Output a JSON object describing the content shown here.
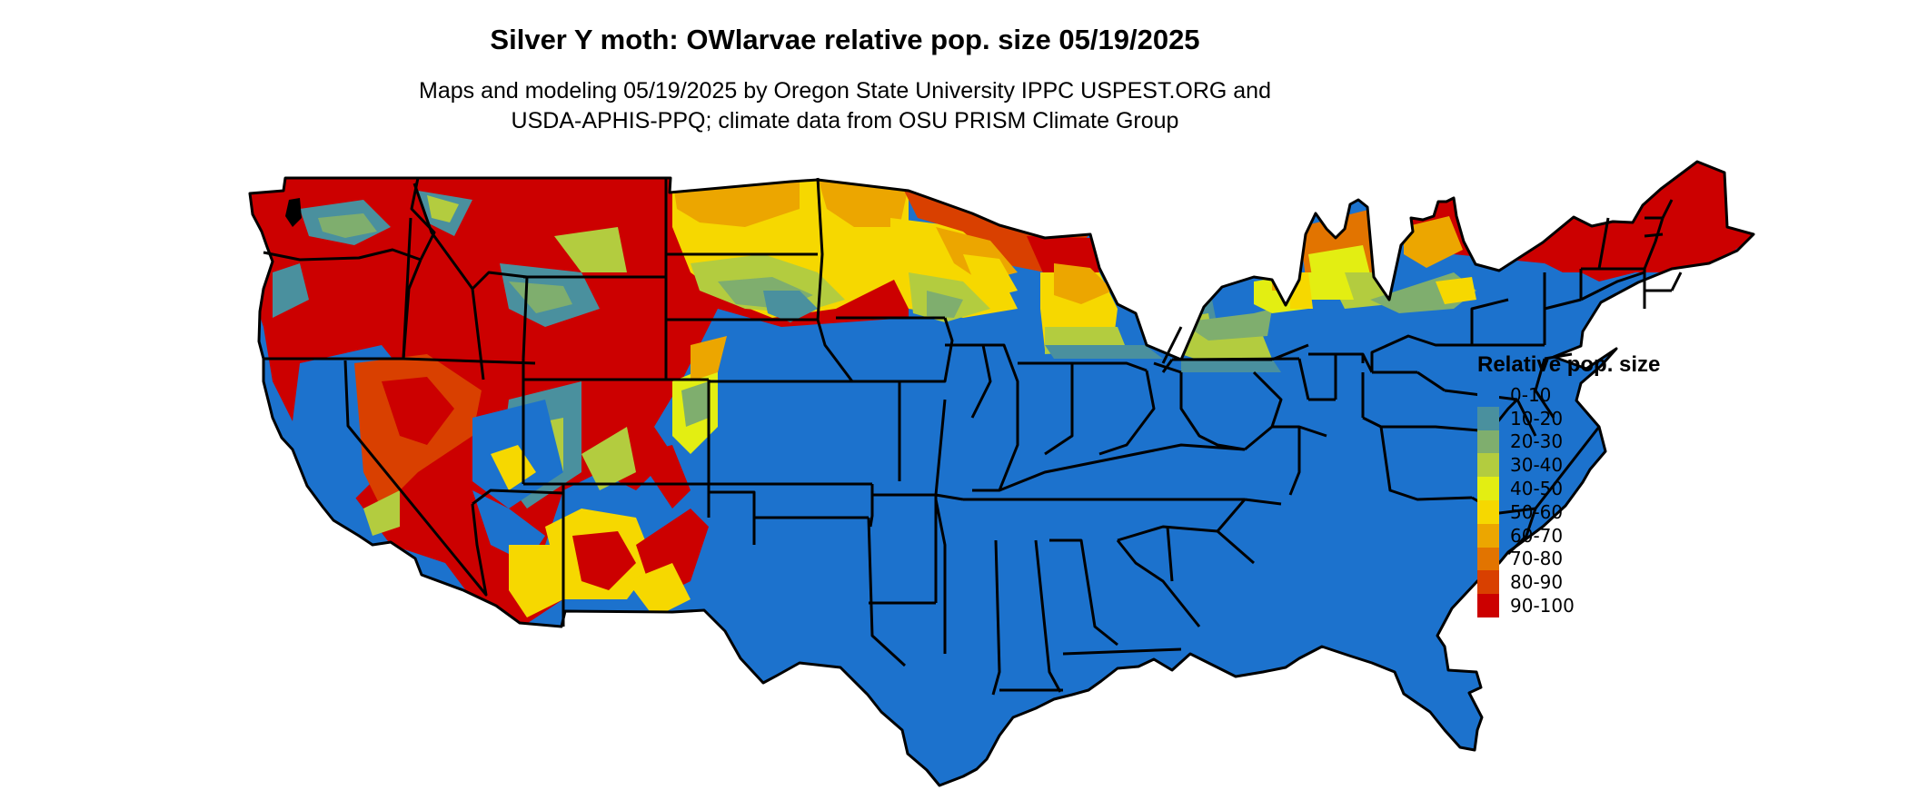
{
  "map": {
    "title": "Silver Y moth: OWlarvae relative pop. size 05/19/2025",
    "subtitle_lines": [
      "Maps and modeling 05/19/2025 by Oregon State University IPPC USPEST.ORG and",
      "USDA-APHIS-PPQ; climate data from OSU PRISM Climate Group"
    ],
    "region": "Conterminous United States",
    "legend": {
      "title": "Relative pop. size",
      "classes": [
        {
          "label": "0-10",
          "color": "#1c72cd"
        },
        {
          "label": "10-20",
          "color": "#4a909e"
        },
        {
          "label": "20-30",
          "color": "#7fae6e"
        },
        {
          "label": "30-40",
          "color": "#b3cc3f"
        },
        {
          "label": "40-50",
          "color": "#e3ee12"
        },
        {
          "label": "50-60",
          "color": "#f6d800"
        },
        {
          "label": "60-70",
          "color": "#eca600"
        },
        {
          "label": "70-80",
          "color": "#e27400"
        },
        {
          "label": "80-90",
          "color": "#d94000"
        },
        {
          "label": "90-100",
          "color": "#cc0000"
        }
      ]
    }
  }
}
